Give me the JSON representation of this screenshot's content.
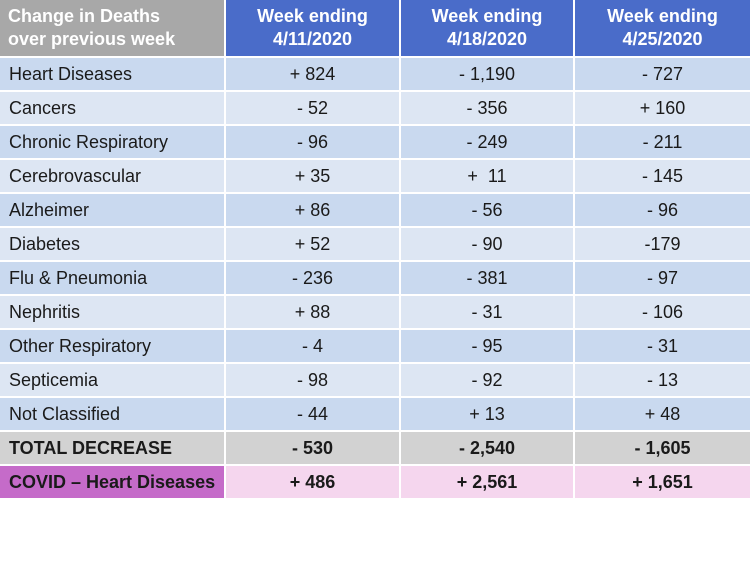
{
  "header": {
    "label_lines": [
      "Change in Deaths",
      "over previous week"
    ],
    "weeks": [
      {
        "line1": "Week ending",
        "line2": "4/11/2020"
      },
      {
        "line1": "Week ending",
        "line2": "4/18/2020"
      },
      {
        "line1": "Week ending",
        "line2": "4/25/2020"
      }
    ]
  },
  "rows": [
    {
      "name": "Heart Diseases",
      "values": [
        "+ 824",
        "- 1,190",
        "- 727"
      ]
    },
    {
      "name": "Cancers",
      "values": [
        "- 52",
        "- 356",
        "+ 160"
      ]
    },
    {
      "name": "Chronic Respiratory",
      "values": [
        "- 96",
        "- 249",
        "- 211"
      ]
    },
    {
      "name": "Cerebrovascular",
      "values": [
        "+ 35",
        "+  11",
        "- 145"
      ]
    },
    {
      "name": "Alzheimer",
      "values": [
        "+ 86",
        "- 56",
        "- 96"
      ]
    },
    {
      "name": "Diabetes",
      "values": [
        "+ 52",
        "- 90",
        "-179"
      ]
    },
    {
      "name": "Flu & Pneumonia",
      "values": [
        "- 236",
        "- 381",
        "- 97"
      ]
    },
    {
      "name": "Nephritis",
      "values": [
        "+ 88",
        "- 31",
        "- 106"
      ]
    },
    {
      "name": "Other Respiratory",
      "values": [
        "- 4",
        "- 95",
        "- 31"
      ]
    },
    {
      "name": "Septicemia",
      "values": [
        "- 98",
        "- 92",
        "- 13"
      ]
    },
    {
      "name": "Not Classified",
      "values": [
        "- 44",
        "+ 13",
        "+ 48"
      ]
    }
  ],
  "total": {
    "name": "TOTAL DECREASE",
    "values": [
      "- 530",
      "- 2,540",
      "- 1,605"
    ]
  },
  "covid": {
    "name": "COVID – Heart Diseases",
    "values": [
      "+ 486",
      "+ 2,561",
      "+ 1,651"
    ]
  },
  "colors": {
    "header_label_bg": "#a8a8a8",
    "header_week_bg": "#4a6cc9",
    "row_a_bg": "#c9d9ef",
    "row_b_bg": "#dde6f3",
    "total_bg": "#d2d2d2",
    "covid_label_bg": "#c56bc9",
    "covid_bg": "#f5d6ee"
  }
}
